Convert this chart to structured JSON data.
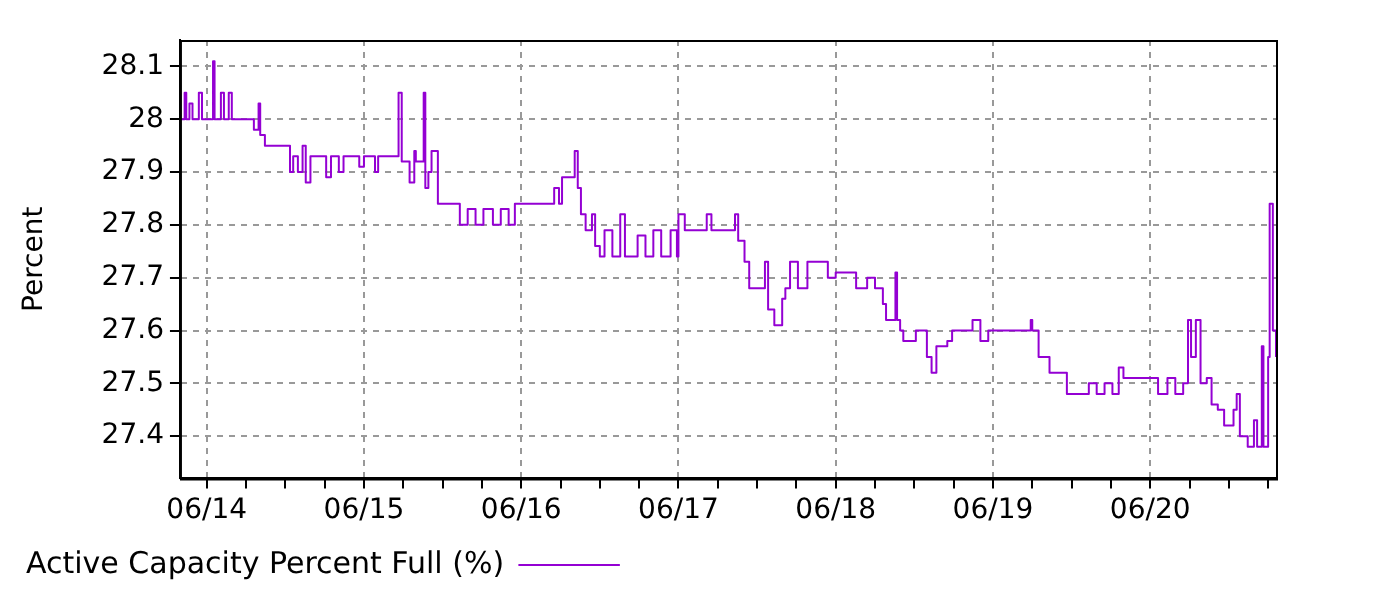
{
  "chart_data": {
    "type": "step",
    "ylabel": "Percent",
    "legend": "bottom",
    "grid": true,
    "marker": "none",
    "xlim": [
      "--06-13T19:55",
      "--06-20T19:12"
    ],
    "ylim": [
      27.32,
      28.15
    ],
    "xticks": [
      {
        "value": "--06-14",
        "label": "06/14"
      },
      {
        "value": "--06-14T06:00",
        "label": null
      },
      {
        "value": "--06-14T12:00",
        "label": null
      },
      {
        "value": "--06-14T18:00",
        "label": null
      },
      {
        "value": "--06-15",
        "label": "06/15"
      },
      {
        "value": "--06-15T06:00",
        "label": null
      },
      {
        "value": "--06-15T12:00",
        "label": null
      },
      {
        "value": "--06-15T18:00",
        "label": null
      },
      {
        "value": "--06-16",
        "label": "06/16"
      },
      {
        "value": "--06-16T06:00",
        "label": null
      },
      {
        "value": "--06-16T12:00",
        "label": null
      },
      {
        "value": "--06-16T18:00",
        "label": null
      },
      {
        "value": "--06-17",
        "label": "06/17"
      },
      {
        "value": "--06-17T06:00",
        "label": null
      },
      {
        "value": "--06-17T12:00",
        "label": null
      },
      {
        "value": "--06-17T18:00",
        "label": null
      },
      {
        "value": "--06-18",
        "label": "06/18"
      },
      {
        "value": "--06-18T06:00",
        "label": null
      },
      {
        "value": "--06-18T12:00",
        "label": null
      },
      {
        "value": "--06-18T18:00",
        "label": null
      },
      {
        "value": "--06-19",
        "label": "06/19"
      },
      {
        "value": "--06-19T06:00",
        "label": null
      },
      {
        "value": "--06-19T12:00",
        "label": null
      },
      {
        "value": "--06-19T18:00",
        "label": null
      },
      {
        "value": "--06-20",
        "label": "06/20"
      },
      {
        "value": "--06-20T06:00",
        "label": null
      },
      {
        "value": "--06-20T12:00",
        "label": null
      },
      {
        "value": "--06-20T18:00",
        "label": null
      }
    ],
    "yticks": [
      27.4,
      27.5,
      27.6,
      27.7,
      27.8,
      27.9,
      28,
      28.1
    ],
    "series": [
      {
        "name": "Active Capacity Percent Full (%)",
        "color": "#9400d3",
        "x": [
          "--06-13T19:55",
          "--06-13T20:38",
          "--06-13T20:53",
          "--06-13T21:22",
          "--06-13T21:50",
          "--06-13T22:48",
          "--06-13T23:17",
          "--06-14T00:58",
          "--06-14T01:12",
          "--06-14T02:10",
          "--06-14T02:38",
          "--06-14T03:22",
          "--06-14T03:50",
          "--06-14T07:12",
          "--06-14T07:55",
          "--06-14T08:10",
          "--06-14T08:53",
          "--06-14T12:14",
          "--06-14T12:43",
          "--06-14T13:12",
          "--06-14T13:55",
          "--06-14T14:38",
          "--06-14T15:07",
          "--06-14T15:50",
          "--06-14T17:46",
          "--06-14T18:14",
          "--06-14T18:58",
          "--06-14T20:10",
          "--06-14T20:53",
          "--06-14T23:17",
          "--06-15T00:00",
          "--06-15T01:41",
          "--06-15T02:10",
          "--06-15T04:48",
          "--06-15T05:17",
          "--06-15T05:46",
          "--06-15T06:58",
          "--06-15T07:41",
          "--06-15T07:55",
          "--06-15T09:07",
          "--06-15T09:22",
          "--06-15T09:50",
          "--06-15T10:19",
          "--06-15T11:02",
          "--06-15T11:17",
          "--06-15T13:55",
          "--06-15T14:38",
          "--06-15T15:50",
          "--06-15T17:02",
          "--06-15T18:14",
          "--06-15T19:41",
          "--06-15T20:53",
          "--06-15T22:05",
          "--06-15T23:02",
          "--06-16T04:19",
          "--06-16T05:02",
          "--06-16T05:46",
          "--06-16T06:14",
          "--06-16T08:10",
          "--06-16T08:38",
          "--06-16T09:07",
          "--06-16T09:50",
          "--06-16T10:48",
          "--06-16T11:17",
          "--06-16T12:00",
          "--06-16T12:43",
          "--06-16T13:55",
          "--06-16T15:07",
          "--06-16T15:50",
          "--06-16T17:02",
          "--06-16T17:46",
          "--06-16T18:58",
          "--06-16T20:10",
          "--06-16T21:22",
          "--06-16T22:48",
          "--06-16T23:46",
          "--06-17T00:00",
          "--06-17T00:58",
          "--06-17T02:38",
          "--06-17T04:19",
          "--06-17T05:02",
          "--06-17T07:55",
          "--06-17T08:38",
          "--06-17T09:07",
          "--06-17T10:05",
          "--06-17T10:48",
          "--06-17T12:43",
          "--06-17T13:12",
          "--06-17T13:41",
          "--06-17T14:38",
          "--06-17T15:50",
          "--06-17T16:19",
          "--06-17T17:02",
          "--06-17T18:14",
          "--06-17T19:41",
          "--06-17T22:05",
          "--06-17T22:48",
          "--06-18T00:00",
          "--06-18T00:58",
          "--06-18T03:07",
          "--06-18T04:48",
          "--06-18T06:00",
          "--06-18T07:12",
          "--06-18T07:41",
          "--06-18T08:53",
          "--06-18T09:07",
          "--06-18T09:22",
          "--06-18T09:50",
          "--06-18T10:19",
          "--06-18T11:46",
          "--06-18T12:14",
          "--06-18T13:55",
          "--06-18T14:38",
          "--06-18T15:22",
          "--06-18T17:02",
          "--06-18T17:46",
          "--06-18T19:41",
          "--06-18T20:53",
          "--06-18T22:05",
          "--06-18T23:17",
          "--06-19T01:55",
          "--06-19T05:02",
          "--06-19T05:46",
          "--06-19T06:00",
          "--06-19T06:58",
          "--06-19T07:55",
          "--06-19T08:38",
          "--06-19T10:48",
          "--06-19T11:17",
          "--06-19T13:12",
          "--06-19T14:38",
          "--06-19T15:50",
          "--06-19T17:02",
          "--06-19T18:14",
          "--06-19T19:12",
          "--06-19T19:55",
          "--06-20T00:00",
          "--06-20T01:12",
          "--06-20T02:38",
          "--06-20T03:50",
          "--06-20T05:02",
          "--06-20T05:46",
          "--06-20T06:14",
          "--06-20T06:58",
          "--06-20T07:41",
          "--06-20T08:38",
          "--06-20T09:22",
          "--06-20T10:19",
          "--06-20T11:17",
          "--06-20T12:43",
          "--06-20T13:12",
          "--06-20T13:41",
          "--06-20T14:53",
          "--06-20T15:50",
          "--06-20T16:19",
          "--06-20T17:02",
          "--06-20T17:17",
          "--06-20T18:00",
          "--06-20T18:14",
          "--06-20T18:43",
          "--06-20T19:12"
        ],
        "values": [
          28,
          28.05,
          28,
          28.03,
          28,
          28.05,
          28,
          28.11,
          28,
          28.05,
          28,
          28.05,
          28,
          27.98,
          28.03,
          27.97,
          27.95,
          27.95,
          27.9,
          27.93,
          27.9,
          27.95,
          27.88,
          27.93,
          27.93,
          27.89,
          27.93,
          27.9,
          27.93,
          27.91,
          27.93,
          27.9,
          27.93,
          27.93,
          28.05,
          27.92,
          27.88,
          27.94,
          27.92,
          28.05,
          27.87,
          27.9,
          27.94,
          27.94,
          27.84,
          27.84,
          27.8,
          27.83,
          27.8,
          27.83,
          27.8,
          27.83,
          27.8,
          27.84,
          27.84,
          27.87,
          27.84,
          27.89,
          27.94,
          27.87,
          27.82,
          27.79,
          27.82,
          27.76,
          27.74,
          27.79,
          27.74,
          27.82,
          27.74,
          27.74,
          27.78,
          27.74,
          27.79,
          27.74,
          27.79,
          27.74,
          27.82,
          27.79,
          27.79,
          27.82,
          27.79,
          27.79,
          27.82,
          27.77,
          27.73,
          27.68,
          27.68,
          27.73,
          27.64,
          27.61,
          27.66,
          27.68,
          27.73,
          27.68,
          27.73,
          27.73,
          27.7,
          27.71,
          27.71,
          27.68,
          27.7,
          27.68,
          27.65,
          27.62,
          27.62,
          27.71,
          27.62,
          27.6,
          27.58,
          27.58,
          27.6,
          27.55,
          27.52,
          27.57,
          27.58,
          27.6,
          27.6,
          27.62,
          27.58,
          27.6,
          27.6,
          27.6,
          27.62,
          27.6,
          27.55,
          27.55,
          27.52,
          27.52,
          27.48,
          27.48,
          27.5,
          27.48,
          27.5,
          27.48,
          27.53,
          27.51,
          27.51,
          27.48,
          27.51,
          27.48,
          27.5,
          27.62,
          27.55,
          27.62,
          27.5,
          27.51,
          27.46,
          27.45,
          27.42,
          27.45,
          27.48,
          27.4,
          27.38,
          27.43,
          27.38,
          27.57,
          27.38,
          27.55,
          27.84,
          27.6,
          27.55
        ]
      }
    ]
  }
}
